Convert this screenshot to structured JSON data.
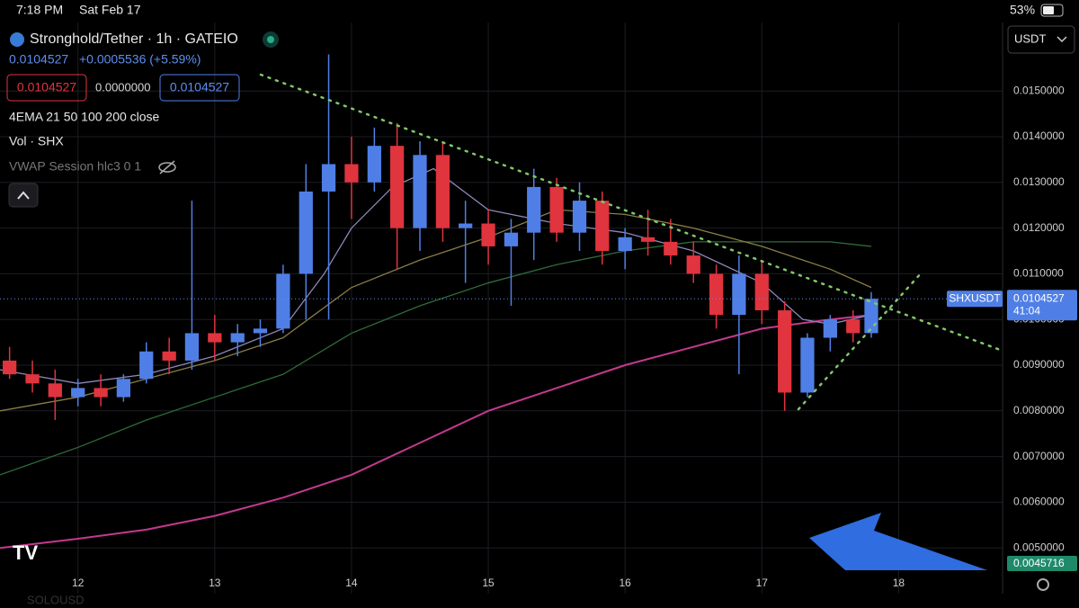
{
  "status_bar": {
    "time": "7:18 PM",
    "date": "Sat Feb 17",
    "battery": "53%"
  },
  "header": {
    "symbol": "Stronghold/Tether · 1h · GATEIO",
    "price": "0.0104527",
    "change": "+0.0005536 (+5.59%)",
    "bid": "0.0104527",
    "spread": "0.0000000",
    "ask": "0.0104527",
    "indicator_1": "4EMA 21 50 100 200 close",
    "indicator_2": "Vol · SHX",
    "indicator_3": "VWAP Session hlc3 0 1",
    "currency": "USDT",
    "watermark": "SOLOUSD"
  },
  "tags": {
    "symbol": "SHXUSDT",
    "countdown": "41:04",
    "volume": "0.0045716"
  },
  "chart_data": {
    "type": "candlestick",
    "xlim": [
      11.43,
      18.76
    ],
    "xticks": [
      12,
      13,
      14,
      15,
      16,
      17,
      18
    ],
    "ylim": [
      0.004,
      0.0165
    ],
    "yticks": [
      {
        "value": 0.005,
        "label": "0.0050000"
      },
      {
        "value": 0.006,
        "label": "0.0060000"
      },
      {
        "value": 0.007,
        "label": "0.0070000"
      },
      {
        "value": 0.008,
        "label": "0.0080000"
      },
      {
        "value": 0.009,
        "label": "0.0090000"
      },
      {
        "value": 0.01,
        "label": "0.0100000"
      },
      {
        "value": 0.011,
        "label": "0.0110000"
      },
      {
        "value": 0.012,
        "label": "0.0120000"
      },
      {
        "value": 0.013,
        "label": "0.0130000"
      },
      {
        "value": 0.014,
        "label": "0.0140000"
      },
      {
        "value": 0.015,
        "label": "0.0150000"
      }
    ],
    "grid": true,
    "up_color": "#4f7fe6",
    "down_color": "#e0343e",
    "x": [
      11.5,
      11.667,
      11.833,
      12.0,
      12.167,
      12.333,
      12.5,
      12.667,
      12.833,
      13.0,
      13.167,
      13.333,
      13.5,
      13.667,
      13.833,
      14.0,
      14.167,
      14.333,
      14.5,
      14.667,
      14.833,
      15.0,
      15.167,
      15.333,
      15.5,
      15.667,
      15.833,
      16.0,
      16.167,
      16.333,
      16.5,
      16.667,
      16.833,
      17.0,
      17.167,
      17.333,
      17.5,
      17.667,
      17.8
    ],
    "open": [
      0.0091,
      0.0088,
      0.0086,
      0.0083,
      0.0085,
      0.0083,
      0.0087,
      0.0093,
      0.0091,
      0.0097,
      0.0095,
      0.0097,
      0.0098,
      0.011,
      0.0128,
      0.0134,
      0.013,
      0.0138,
      0.012,
      0.0136,
      0.012,
      0.0121,
      0.0116,
      0.0119,
      0.0129,
      0.0119,
      0.0126,
      0.0115,
      0.0118,
      0.0117,
      0.0114,
      0.011,
      0.0101,
      0.011,
      0.0102,
      0.0084,
      0.0096,
      0.01,
      0.0097
    ],
    "high": [
      0.0094,
      0.0091,
      0.0089,
      0.0087,
      0.0088,
      0.0088,
      0.0095,
      0.0096,
      0.0126,
      0.0101,
      0.0099,
      0.01,
      0.0112,
      0.0134,
      0.0158,
      0.014,
      0.0142,
      0.0143,
      0.0139,
      0.0139,
      0.0126,
      0.0124,
      0.0122,
      0.0133,
      0.0131,
      0.013,
      0.0128,
      0.012,
      0.0124,
      0.0122,
      0.0117,
      0.0112,
      0.0114,
      0.0113,
      0.0104,
      0.0097,
      0.0101,
      0.0102,
      0.0106
    ],
    "low": [
      0.0087,
      0.0084,
      0.0078,
      0.0081,
      0.0081,
      0.0082,
      0.0086,
      0.0088,
      0.0089,
      0.0091,
      0.0092,
      0.0094,
      0.0097,
      0.01,
      0.01,
      0.0122,
      0.0128,
      0.0111,
      0.0115,
      0.0117,
      0.0108,
      0.0112,
      0.0103,
      0.0113,
      0.0117,
      0.0115,
      0.0112,
      0.0111,
      0.0114,
      0.0112,
      0.0108,
      0.0098,
      0.0088,
      0.0099,
      0.008,
      0.0083,
      0.0093,
      0.0095,
      0.0096
    ],
    "close": [
      0.0088,
      0.0086,
      0.0083,
      0.0085,
      0.0083,
      0.0087,
      0.0093,
      0.0091,
      0.0097,
      0.0095,
      0.0097,
      0.0098,
      0.011,
      0.0128,
      0.0134,
      0.013,
      0.0138,
      0.012,
      0.0136,
      0.012,
      0.0121,
      0.0116,
      0.0119,
      0.0129,
      0.0119,
      0.0126,
      0.0115,
      0.0118,
      0.0117,
      0.0114,
      0.011,
      0.0101,
      0.011,
      0.0102,
      0.0084,
      0.0096,
      0.01,
      0.0097,
      0.0104527
    ],
    "lines": [
      {
        "color": "#c4398f",
        "x": [
          11.43,
          12,
          12.5,
          13,
          13.5,
          14,
          14.5,
          15,
          15.5,
          16,
          16.5,
          17,
          17.5,
          17.8
        ],
        "values": [
          0.005,
          0.0052,
          0.0054,
          0.0057,
          0.0061,
          0.0066,
          0.0073,
          0.008,
          0.0085,
          0.009,
          0.0094,
          0.0098,
          0.01,
          0.0101
        ]
      },
      {
        "color": "#2f6b3a",
        "x": [
          11.43,
          12,
          12.5,
          13,
          13.5,
          14,
          14.5,
          15,
          15.5,
          16,
          16.5,
          17,
          17.5,
          17.8
        ],
        "values": [
          0.0066,
          0.0072,
          0.0078,
          0.0083,
          0.0088,
          0.0097,
          0.0103,
          0.0108,
          0.0112,
          0.0115,
          0.0117,
          0.0117,
          0.0117,
          0.0116
        ]
      },
      {
        "color": "#8a7d45",
        "x": [
          11.43,
          12,
          12.5,
          13,
          13.5,
          14,
          14.5,
          15,
          15.5,
          16,
          16.5,
          17,
          17.5,
          17.8
        ],
        "values": [
          0.008,
          0.0083,
          0.0087,
          0.0091,
          0.0096,
          0.0107,
          0.0113,
          0.0118,
          0.0124,
          0.0123,
          0.012,
          0.0116,
          0.0111,
          0.0107
        ]
      },
      {
        "color": "#8f86b8",
        "x": [
          11.43,
          12,
          12.5,
          13,
          13.5,
          13.8,
          14,
          14.3,
          14.6,
          15,
          15.5,
          16,
          16.5,
          17,
          17.3,
          17.5,
          17.8
        ],
        "values": [
          0.0089,
          0.0086,
          0.0088,
          0.0092,
          0.0098,
          0.011,
          0.012,
          0.0129,
          0.0133,
          0.0124,
          0.0121,
          0.0119,
          0.0115,
          0.0108,
          0.01,
          0.0099,
          0.0101
        ]
      }
    ]
  }
}
